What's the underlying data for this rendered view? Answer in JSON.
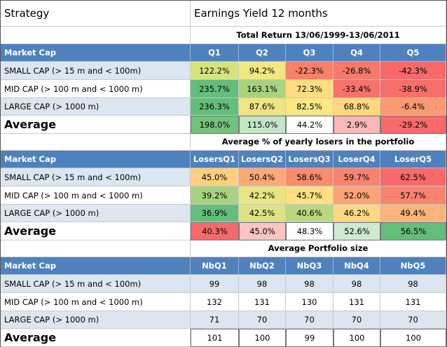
{
  "header": {
    "strategy": "Strategy",
    "title": "Earnings Yield 12 months"
  },
  "sections": [
    {
      "title": "Total Return 13/06/1999-13/06/2011",
      "columns": [
        "Market Cap",
        "Q1",
        "Q2",
        "Q3",
        "Q4",
        "Q5"
      ],
      "rows": [
        {
          "label": "SMALL CAP  (> 15 m and < 100m)",
          "cells": [
            "122.2%",
            "94.2%",
            "-22.3%",
            "-26.8%",
            "-42.3%"
          ],
          "colors": [
            "#d7e37f",
            "#f2e783",
            "#f8816b",
            "#f8796b",
            "#f8696b"
          ]
        },
        {
          "label": "MID CAP  (> 100 m and < 1000 m)",
          "cells": [
            "235.7%",
            "163.1%",
            "72.3%",
            "-33.4%",
            "-38.9%"
          ],
          "colors": [
            "#63be7b",
            "#a9d27f",
            "#fddc82",
            "#f8726c",
            "#f86e6b"
          ]
        },
        {
          "label": " LARGE CAP  (> 1000 m)",
          "cells": [
            "236.3%",
            "87.6%",
            "82.5%",
            "68.8%",
            "-6.4%"
          ],
          "colors": [
            "#63be7b",
            "#eee683",
            "#f9e883",
            "#fed880",
            "#f99a72"
          ]
        },
        {
          "label": "Average",
          "cells": [
            "198.0%",
            "115.0%",
            "44.2%",
            "2.9%",
            "-29.2%"
          ],
          "colors": [
            "#72c27c",
            "#c4e5c8",
            "#ffffff",
            "#f8b7b9",
            "#f8696b"
          ]
        }
      ]
    },
    {
      "title": "Average % of yearly losers in the portfolio",
      "columns": [
        "Market Cap",
        "LosersQ1",
        "LosersQ2",
        "LosersQ3",
        "LoserQ4",
        "LoserQ5"
      ],
      "rows": [
        {
          "label": "SMALL CAP  (> 15 m and < 100m)",
          "cells": [
            "45.0%",
            "50.4%",
            "58.6%",
            "59.7%",
            "62.5%"
          ],
          "colors": [
            "#fdcf7e",
            "#fbaa77",
            "#f98b6f",
            "#f9836f",
            "#f8696b"
          ]
        },
        {
          "label": "MID CAP  (> 100 m and < 1000 m)",
          "cells": [
            "39.2%",
            "42.2%",
            "45.7%",
            "52.0%",
            "57.7%"
          ],
          "colors": [
            "#a8d27f",
            "#e8e583",
            "#fedf81",
            "#fba276",
            "#f98370"
          ]
        },
        {
          "label": " LARGE CAP  (> 1000 m)",
          "cells": [
            "36.9%",
            "42.5%",
            "40.6%",
            "46.2%",
            "49.4%"
          ],
          "colors": [
            "#63be7b",
            "#dfe283",
            "#b9d780",
            "#fdd880",
            "#fcb479"
          ]
        },
        {
          "label": "Average",
          "cells": [
            "40.3%",
            "45.0%",
            "48.3%",
            "52.6%",
            "56.5%"
          ],
          "colors": [
            "#f8696b",
            "#fbc5c6",
            "#ffffff",
            "#cfe9d3",
            "#63be7b"
          ]
        }
      ]
    },
    {
      "title": "Average Portfolio size",
      "columns": [
        "Market Cap",
        "NbQ1",
        "NbQ2",
        "NbQ3",
        "NbQ4",
        "NbQ5"
      ],
      "rows": [
        {
          "label": "SMALL CAP  (> 15 m and < 100m)",
          "cells": [
            "99",
            "98",
            "98",
            "98",
            "98"
          ],
          "colors": [
            "#dce6f1",
            "#dce6f1",
            "#dce6f1",
            "#dce6f1",
            "#dce6f1"
          ]
        },
        {
          "label": "MID CAP  (> 100 m and < 1000 m)",
          "cells": [
            "132",
            "131",
            "130",
            "131",
            "131"
          ],
          "colors": [
            "#ffffff",
            "#ffffff",
            "#ffffff",
            "#ffffff",
            "#ffffff"
          ]
        },
        {
          "label": " LARGE CAP  (> 1000 m)",
          "cells": [
            "71",
            "70",
            "70",
            "70",
            "70"
          ],
          "colors": [
            "#dce6f1",
            "#dce6f1",
            "#dce6f1",
            "#dce6f1",
            "#dce6f1"
          ]
        },
        {
          "label": "Average",
          "cells": [
            "101",
            "100",
            "99",
            "100",
            "100"
          ],
          "colors": [
            "#ffffff",
            "#ffffff",
            "#ffffff",
            "#ffffff",
            "#ffffff"
          ]
        }
      ]
    }
  ]
}
